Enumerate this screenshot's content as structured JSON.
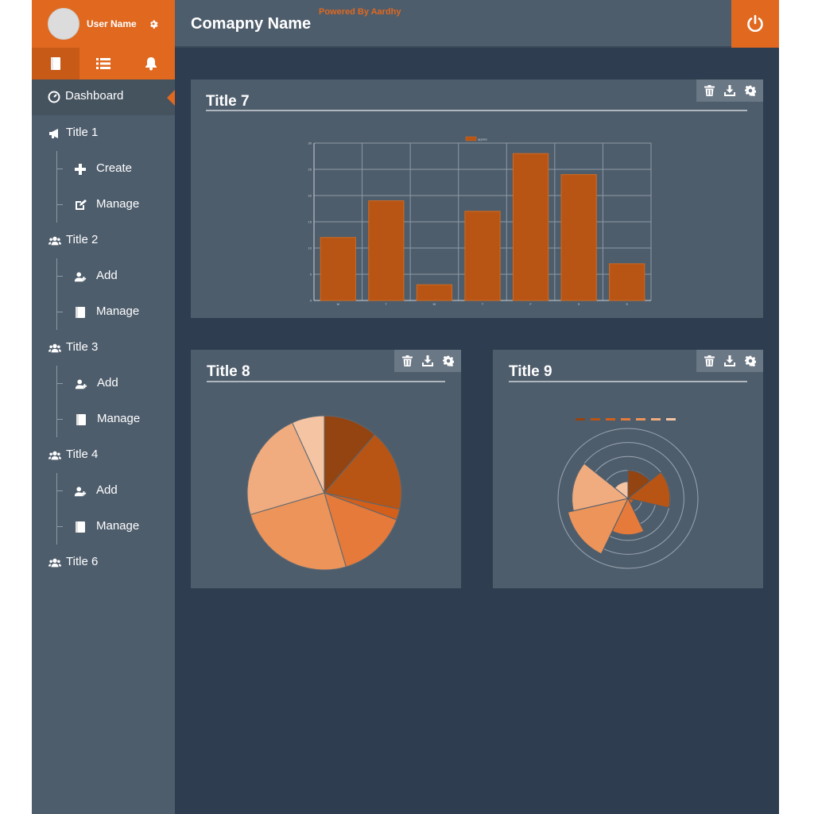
{
  "sidebar": {
    "user_name": "User Name",
    "nav": [
      {
        "label": "Dashboard",
        "icon": "dashboard-icon",
        "active": true
      },
      {
        "label": "Title 1",
        "icon": "megaphone-icon"
      },
      {
        "label": "Create",
        "icon": "plus-icon",
        "sub": true
      },
      {
        "label": "Manage",
        "icon": "edit-icon",
        "sub": true
      },
      {
        "label": "Title 2",
        "icon": "users-icon"
      },
      {
        "label": "Add",
        "icon": "add-user-icon",
        "sub": true
      },
      {
        "label": "Manage",
        "icon": "book-icon",
        "sub": true
      },
      {
        "label": "Title 3",
        "icon": "users-icon"
      },
      {
        "label": "Add",
        "icon": "add-user-icon",
        "sub": true
      },
      {
        "label": "Manage",
        "icon": "book-icon",
        "sub": true
      },
      {
        "label": "Title 4",
        "icon": "users-icon"
      },
      {
        "label": "Add",
        "icon": "add-user-icon",
        "sub": true
      },
      {
        "label": "Manage",
        "icon": "book-icon",
        "sub": true
      },
      {
        "label": "Title 6",
        "icon": "users-icon"
      }
    ],
    "tabs": [
      "book-icon",
      "list-icon",
      "bell-icon"
    ]
  },
  "header": {
    "company": "Comapny Name",
    "powered_by": "Powered By Aardhy"
  },
  "panels": {
    "p7": {
      "title": "Title 7"
    },
    "p8": {
      "title": "Title 8"
    },
    "p9": {
      "title": "Title 9"
    }
  },
  "colors": {
    "accent": "#e0681f",
    "panel": "#4e5d6c",
    "background": "#2e3e50",
    "bar": "#b95514"
  },
  "chart_data": [
    {
      "type": "bar",
      "categories": [
        "M",
        "T",
        "W",
        "T",
        "F",
        "S",
        "S"
      ],
      "series": [
        {
          "name": "apples",
          "values": [
            12,
            19,
            3,
            17,
            28,
            24,
            7
          ]
        }
      ],
      "ylim": [
        0,
        30
      ],
      "yticks": [
        0,
        5,
        10,
        15,
        20,
        25,
        30
      ],
      "grid": true,
      "legend": "top-center"
    },
    {
      "type": "pie",
      "values": [
        10,
        15,
        2,
        13,
        22,
        20,
        6
      ],
      "colors": [
        "#934410",
        "#b95514",
        "#d35f1a",
        "#e57a3a",
        "#ec9459",
        "#f0ab7e",
        "#f5c4a3"
      ]
    },
    {
      "type": "polar-area",
      "values": [
        10,
        15,
        2,
        13,
        22,
        20,
        6
      ],
      "colors": [
        "#934410",
        "#b95514",
        "#d35f1a",
        "#e57a3a",
        "#ec9459",
        "#f0ab7e",
        "#f5c4a3"
      ],
      "legend": "top-center"
    }
  ]
}
